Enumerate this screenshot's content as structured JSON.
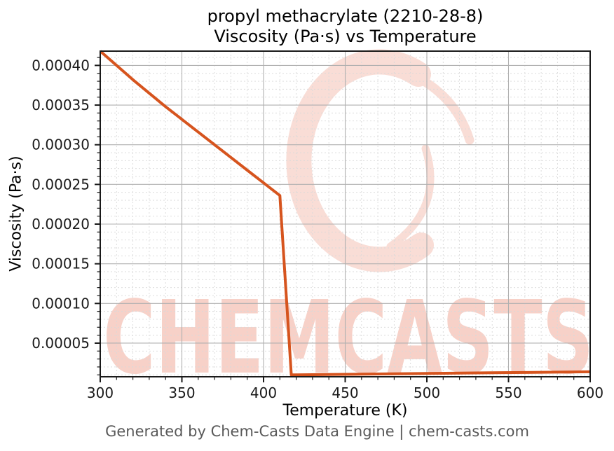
{
  "title": {
    "line1": "propyl methacrylate (2210-28-8)",
    "line2": "Viscosity (Pa·s) vs Temperature"
  },
  "footer": {
    "text": "Generated by Chem-Casts Data Engine | chem-casts.com"
  },
  "watermark": {
    "text": "CHEMCASTS",
    "text_color": "#f7d1c8",
    "logo_color": "#f9ddd6"
  },
  "chart_data": {
    "type": "line",
    "title": "propyl methacrylate (2210-28-8)\nViscosity (Pa·s) vs Temperature",
    "xlabel": "Temperature (K)",
    "ylabel": "Viscosity (Pa·s)",
    "xlim": [
      300,
      600
    ],
    "ylim": [
      7.6e-06,
      0.000418
    ],
    "x_ticks": [
      300,
      350,
      400,
      450,
      500,
      550,
      600
    ],
    "x_tick_labels": [
      "300",
      "350",
      "400",
      "450",
      "500",
      "550",
      "600"
    ],
    "y_ticks": [
      5e-05,
      0.0001,
      0.00015,
      0.0002,
      0.00025,
      0.0003,
      0.00035,
      0.0004
    ],
    "y_tick_labels": [
      "0.00005",
      "0.00010",
      "0.00015",
      "0.00020",
      "0.00025",
      "0.00030",
      "0.00035",
      "0.00040"
    ],
    "x_minor_step": 10,
    "y_minor_step": 1e-05,
    "grid": true,
    "legend": null,
    "line_width": 4,
    "colors": {
      "line": "#d6541e",
      "major_grid": "#b0b0b0",
      "minor_grid": "#d9d9d9",
      "axis": "#1a1a1a",
      "tick_label": "#1a1a1a",
      "footer": "#595959"
    },
    "series": [
      {
        "name": "viscosity",
        "x": [
          300,
          310,
          320,
          330,
          340,
          350,
          360,
          370,
          380,
          390,
          400,
          410,
          417,
          420,
          440,
          460,
          480,
          500,
          520,
          540,
          560,
          580,
          600
        ],
        "y": [
          0.000418,
          0.0004,
          0.000382,
          0.000365,
          0.000348,
          0.000332,
          0.000316,
          0.0003,
          0.000284,
          0.000268,
          0.000252,
          0.000236,
          1e-05,
          1.01e-05,
          1.05e-05,
          1.09e-05,
          1.13e-05,
          1.18e-05,
          1.22e-05,
          1.26e-05,
          1.3e-05,
          1.34e-05,
          1.39e-05
        ]
      }
    ]
  }
}
